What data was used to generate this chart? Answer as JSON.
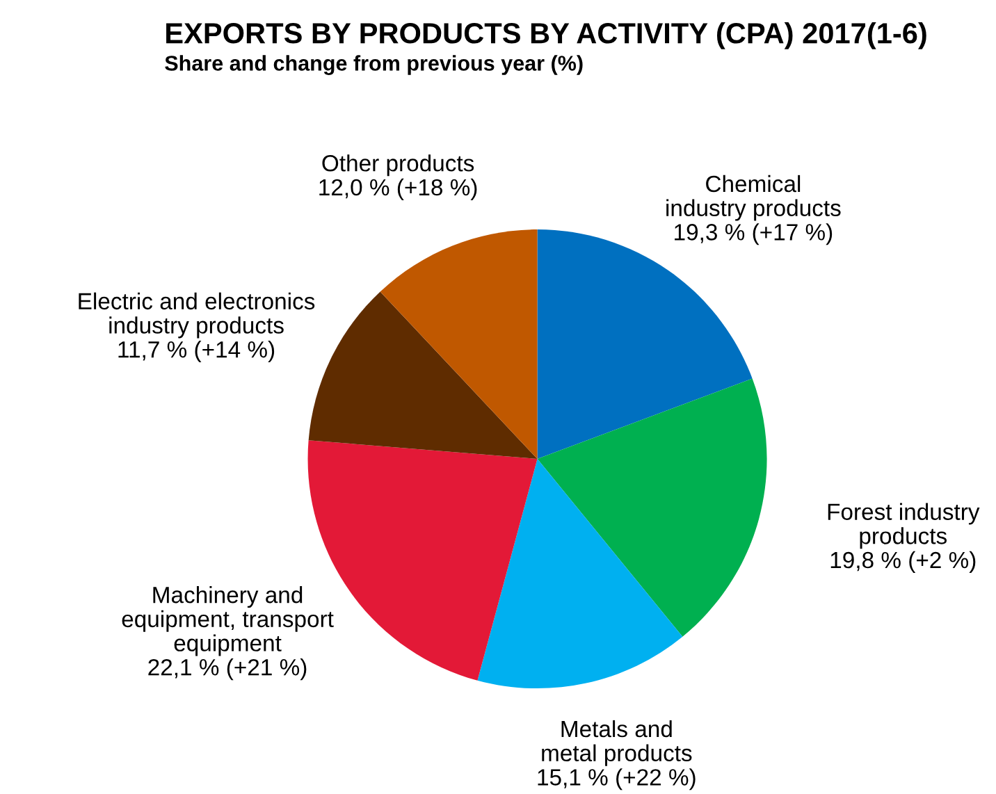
{
  "chart_data": {
    "type": "pie",
    "title": "EXPORTS BY PRODUCTS BY ACTIVITY (CPA) 2017(1-6)",
    "subtitle": "Share and change from previous year (%)",
    "categories": [
      "Chemical\nindustry products",
      "Forest industry\nproducts",
      "Metals and\nmetal products",
      "Machinery and\nequipment, transport\nequipment",
      "Electric and electronics\nindustry products",
      "Other products"
    ],
    "values": [
      19.3,
      19.8,
      15.1,
      22.1,
      11.7,
      12.0
    ],
    "value_labels": [
      "19,3 % (+17 %)",
      "19,8 % (+2 %)",
      "15,1 % (+22 %)",
      "22,1 % (+21 %)",
      "11,7 % (+14 %)",
      "12,0 % (+18 %)"
    ],
    "colors": [
      "#0070c0",
      "#00b050",
      "#00b0f0",
      "#e31937",
      "#5f2c00",
      "#c05800"
    ],
    "legend": false
  }
}
